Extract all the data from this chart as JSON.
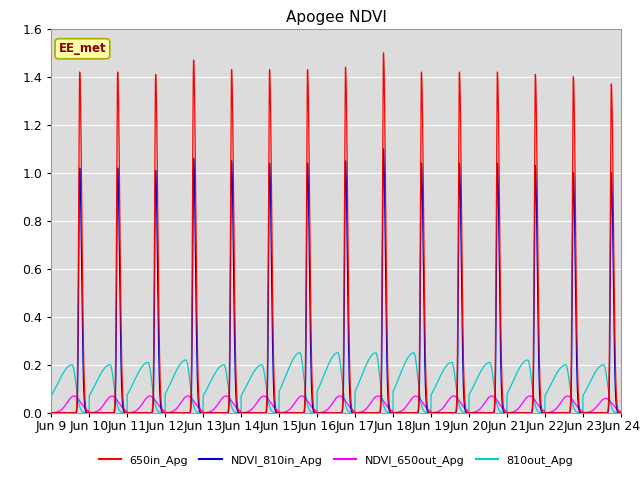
{
  "title": "Apogee NDVI",
  "annotation": "EE_met",
  "ylim": [
    0.0,
    1.6
  ],
  "yticks": [
    0.0,
    0.2,
    0.4,
    0.6,
    0.8,
    1.0,
    1.2,
    1.4,
    1.6
  ],
  "xtick_labels": [
    "Jun 9",
    "Jun 10",
    "Jun 11",
    "Jun 12",
    "Jun 13",
    "Jun 14",
    "Jun 15",
    "Jun 16",
    "Jun 17",
    "Jun 18",
    "Jun 19",
    "Jun 20",
    "Jun 21",
    "Jun 22",
    "Jun 23",
    "Jun 24"
  ],
  "num_peaks": 15,
  "legend_entries": [
    {
      "label": "650in_Apg",
      "color": "#ff0000"
    },
    {
      "label": "NDVI_810in_Apg",
      "color": "#0000cc"
    },
    {
      "label": "NDVI_650out_Apg",
      "color": "#ff00ff"
    },
    {
      "label": "810out_Apg",
      "color": "#00cccc"
    }
  ],
  "plot_bg_color": "#dcdcdc",
  "red_peaks": [
    1.42,
    1.42,
    1.41,
    1.47,
    1.43,
    1.43,
    1.43,
    1.44,
    1.5,
    1.42,
    1.42,
    1.42,
    1.41,
    1.4,
    1.37
  ],
  "blue_peaks": [
    1.02,
    1.02,
    1.01,
    1.06,
    1.05,
    1.04,
    1.04,
    1.05,
    1.1,
    1.04,
    1.04,
    1.04,
    1.03,
    1.0,
    1.0
  ],
  "magenta_peaks": [
    0.07,
    0.07,
    0.07,
    0.07,
    0.07,
    0.07,
    0.07,
    0.07,
    0.07,
    0.07,
    0.07,
    0.07,
    0.07,
    0.07,
    0.06
  ],
  "cyan_peaks": [
    0.2,
    0.2,
    0.21,
    0.22,
    0.2,
    0.2,
    0.25,
    0.25,
    0.25,
    0.25,
    0.21,
    0.21,
    0.22,
    0.2,
    0.2
  ],
  "figsize": [
    6.4,
    4.8
  ],
  "dpi": 100
}
